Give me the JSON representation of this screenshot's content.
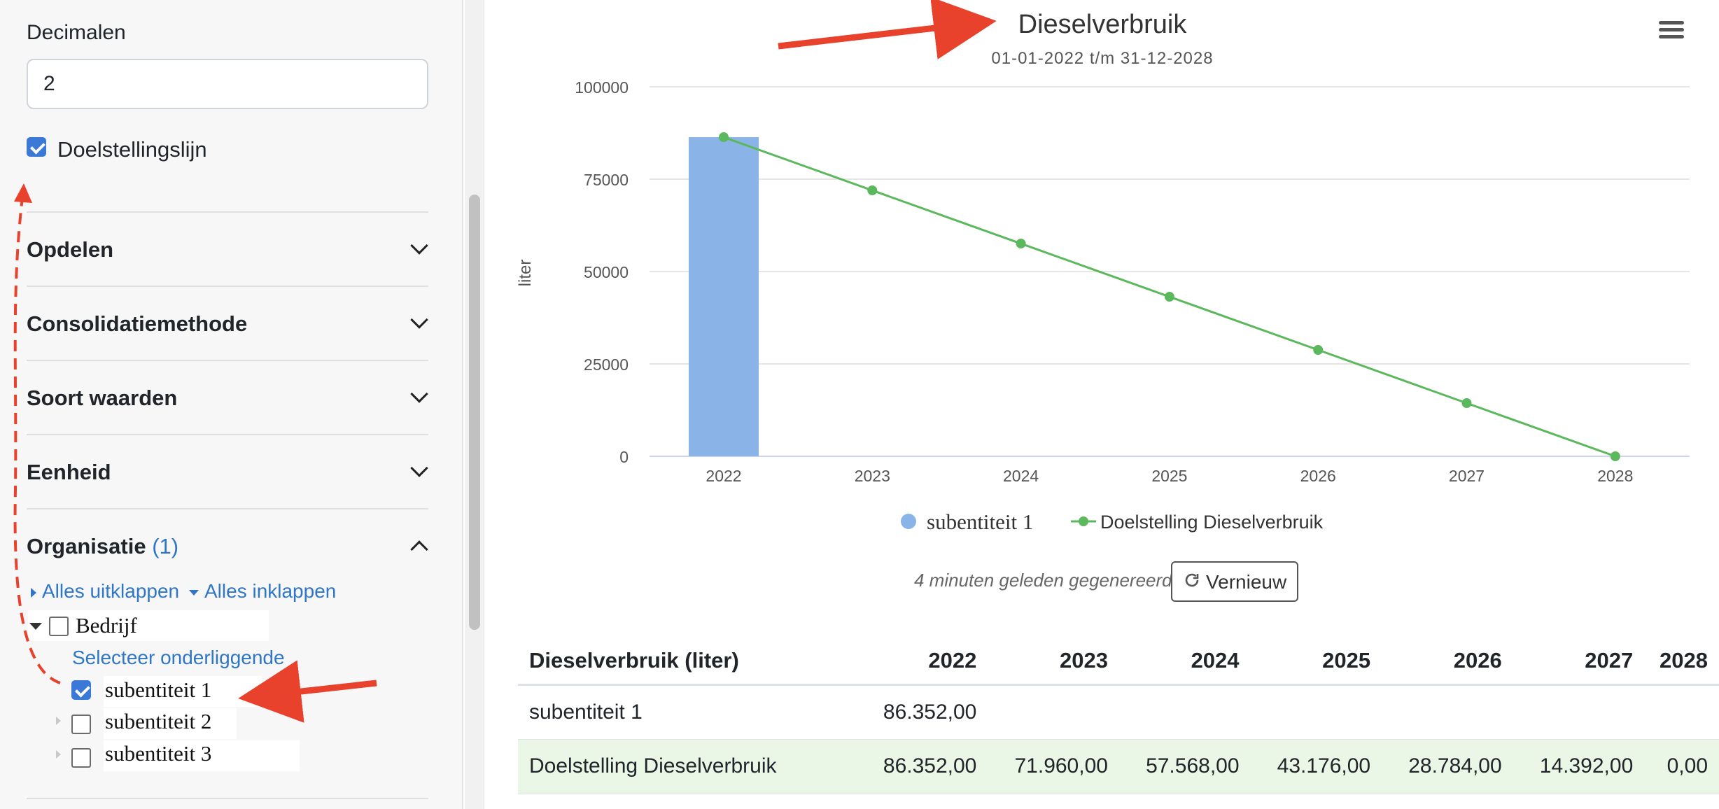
{
  "sidebar": {
    "decimals_label": "Decimalen",
    "decimals_value": "2",
    "goal_line_label": "Doelstellingslijn",
    "goal_line_checked": true,
    "sections": [
      {
        "label": "Opdelen",
        "expanded": false
      },
      {
        "label": "Consolidatiemethode",
        "expanded": false
      },
      {
        "label": "Soort waarden",
        "expanded": false
      },
      {
        "label": "Eenheid",
        "expanded": false
      },
      {
        "label": "Organisatie",
        "count": "(1)",
        "expanded": true
      }
    ],
    "expand_all": "Alles uitklappen",
    "collapse_all": "Alles inklappen",
    "tree": {
      "root": "Bedrijf",
      "select_children": "Selecteer onderliggende",
      "children": [
        {
          "label": "subentiteit 1",
          "checked": true
        },
        {
          "label": "subentiteit 2",
          "checked": false
        },
        {
          "label": "subentiteit 3",
          "checked": false
        }
      ]
    }
  },
  "chart": {
    "title": "Dieselverbruik",
    "subtitle": "01-01-2022 t/m 31-12-2028",
    "menu_icon": "hamburger-menu-icon",
    "legend": [
      "subentiteit 1",
      "Doelstelling Dieselverbruik"
    ],
    "generated_text": "4 minuten geleden gegenereerd",
    "refresh_label": "Vernieuw",
    "colors": {
      "bar": "#8ab4e8",
      "line": "#5cb85c",
      "grid": "#e6e6e6",
      "annotation": "#e8412c"
    }
  },
  "chart_data": {
    "type": "bar",
    "title": "Dieselverbruik",
    "subtitle": "01-01-2022 t/m 31-12-2028",
    "xlabel": "",
    "ylabel": "liter",
    "ylim": [
      0,
      100000
    ],
    "yticks": [
      0,
      25000,
      50000,
      75000,
      100000
    ],
    "categories": [
      "2022",
      "2023",
      "2024",
      "2025",
      "2026",
      "2027",
      "2028"
    ],
    "series": [
      {
        "name": "subentiteit 1",
        "type": "bar",
        "values": [
          86352,
          null,
          null,
          null,
          null,
          null,
          null
        ]
      },
      {
        "name": "Doelstelling Dieselverbruik",
        "type": "line",
        "values": [
          86352,
          71960,
          57568,
          43176,
          28784,
          14392,
          0
        ]
      }
    ],
    "legend": "bottom"
  },
  "table": {
    "header": [
      "Dieselverbruik (liter)",
      "2022",
      "2023",
      "2024",
      "2025",
      "2026",
      "2027",
      "2028"
    ],
    "rows": [
      [
        "subentiteit 1",
        "86.352,00",
        "",
        "",
        "",
        "",
        "",
        ""
      ],
      [
        "Doelstelling Dieselverbruik",
        "86.352,00",
        "71.960,00",
        "57.568,00",
        "43.176,00",
        "28.784,00",
        "14.392,00",
        "0,00"
      ]
    ]
  }
}
